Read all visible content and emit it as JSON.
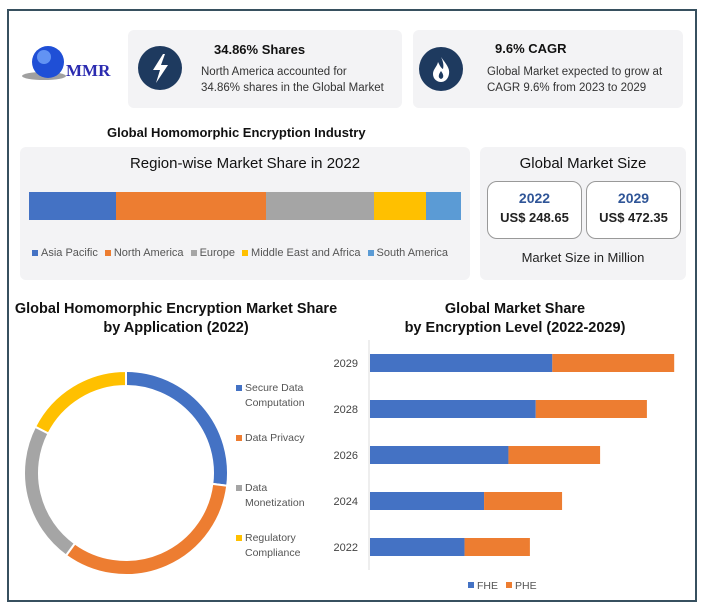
{
  "logo": {
    "text": "MMR"
  },
  "stat_cards": [
    {
      "icon": "lightning-icon",
      "title": "34.86% Shares",
      "line1": "North America accounted for",
      "line2": "34.86% shares in the Global Market"
    },
    {
      "icon": "flame-icon",
      "title": "9.6% CAGR",
      "line1": "Global Market expected to grow at",
      "line2": "CAGR 9.6% from 2023 to 2029"
    }
  ],
  "industry_title": "Global Homomorphic Encryption Industry",
  "market_size": {
    "title": "Global Market Size",
    "years": [
      {
        "year": "2022",
        "value": "US$ 248.65"
      },
      {
        "year": "2029",
        "value": "US$ 472.35"
      }
    ],
    "unit_note": "Market Size in Million",
    "year_color": "#2f5597"
  },
  "chart_data": [
    {
      "type": "bar",
      "orientation": "horizontal-stacked-100",
      "title": "Region-wise Market Share in 2022",
      "legend": "bottom",
      "series": [
        {
          "name": "Asia Pacific",
          "value": 20,
          "color": "#4472c4"
        },
        {
          "name": "North America",
          "value": 34.86,
          "color": "#ed7d31"
        },
        {
          "name": "Europe",
          "value": 25,
          "color": "#a5a5a5"
        },
        {
          "name": "Middle East and Africa",
          "value": 12,
          "color": "#ffc000"
        },
        {
          "name": "South America",
          "value": 8,
          "color": "#5b9bd5"
        }
      ]
    },
    {
      "type": "pie",
      "variant": "donut",
      "title_line1": "Global Homomorphic Encryption Market Share",
      "title_line2": "by Application (2022)",
      "legend": "right",
      "slices": [
        {
          "name_line1": "Secure Data",
          "name_line2": "Computation",
          "value": 27,
          "color": "#4472c4"
        },
        {
          "name_line1": "Data Privacy",
          "name_line2": "",
          "value": 33,
          "color": "#ed7d31"
        },
        {
          "name_line1": "Data",
          "name_line2": "Monetization",
          "value": 22.5,
          "color": "#a5a5a5"
        },
        {
          "name_line1": "Regulatory",
          "name_line2": "Compliance",
          "value": 17.5,
          "color": "#ffc000"
        }
      ]
    },
    {
      "type": "bar",
      "orientation": "horizontal-stacked",
      "title_line1": "Global Market Share",
      "title_line2": "by Encryption Level (2022-2029)",
      "legend": "bottom",
      "grid": false,
      "categories": [
        "2029",
        "2028",
        "2026",
        "2024",
        "2022"
      ],
      "series": [
        {
          "name": "FHE",
          "values": [
            187,
            170,
            142,
            117,
            97
          ],
          "color": "#4472c4"
        },
        {
          "name": "PHE",
          "values": [
            125,
            114,
            94,
            80,
            67
          ],
          "color": "#ed7d31"
        }
      ],
      "xlim": [
        0,
        320
      ]
    }
  ]
}
